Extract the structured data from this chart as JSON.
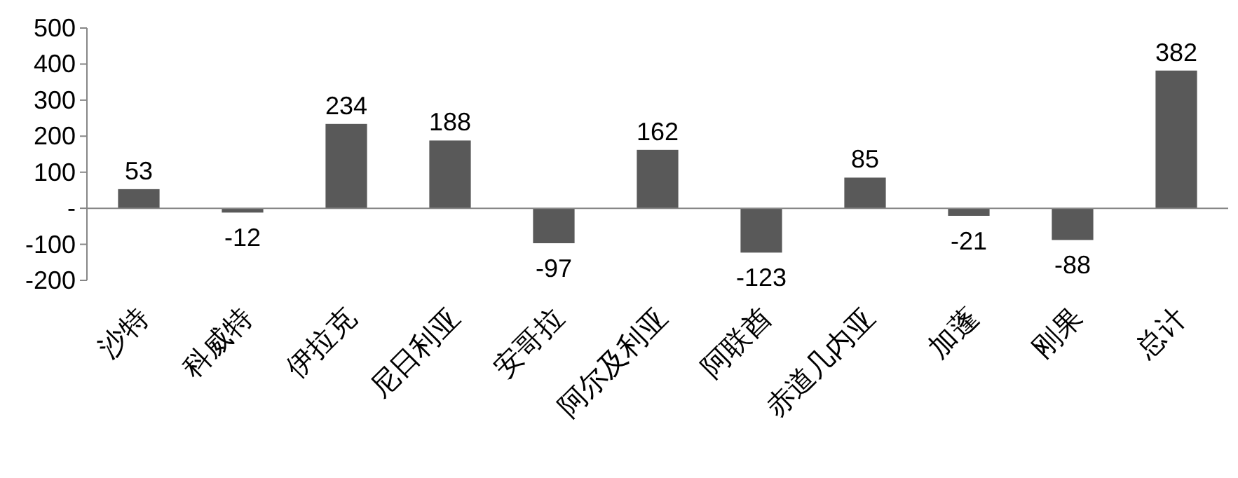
{
  "chart_data": {
    "type": "bar",
    "categories": [
      "沙特",
      "科威特",
      "伊拉克",
      "尼日利亚",
      "安哥拉",
      "阿尔及利亚",
      "阿联酋",
      "赤道几内亚",
      "加蓬",
      "刚果",
      "总计"
    ],
    "values": [
      53,
      -12,
      234,
      188,
      -97,
      162,
      -123,
      85,
      -21,
      -88,
      382
    ],
    "color": "#595959",
    "ylim": [
      -200,
      500
    ],
    "yticks": [
      500,
      400,
      300,
      200,
      100,
      {
        "value": 0,
        "label": "-"
      },
      -100,
      -200
    ],
    "data_labels": true
  }
}
